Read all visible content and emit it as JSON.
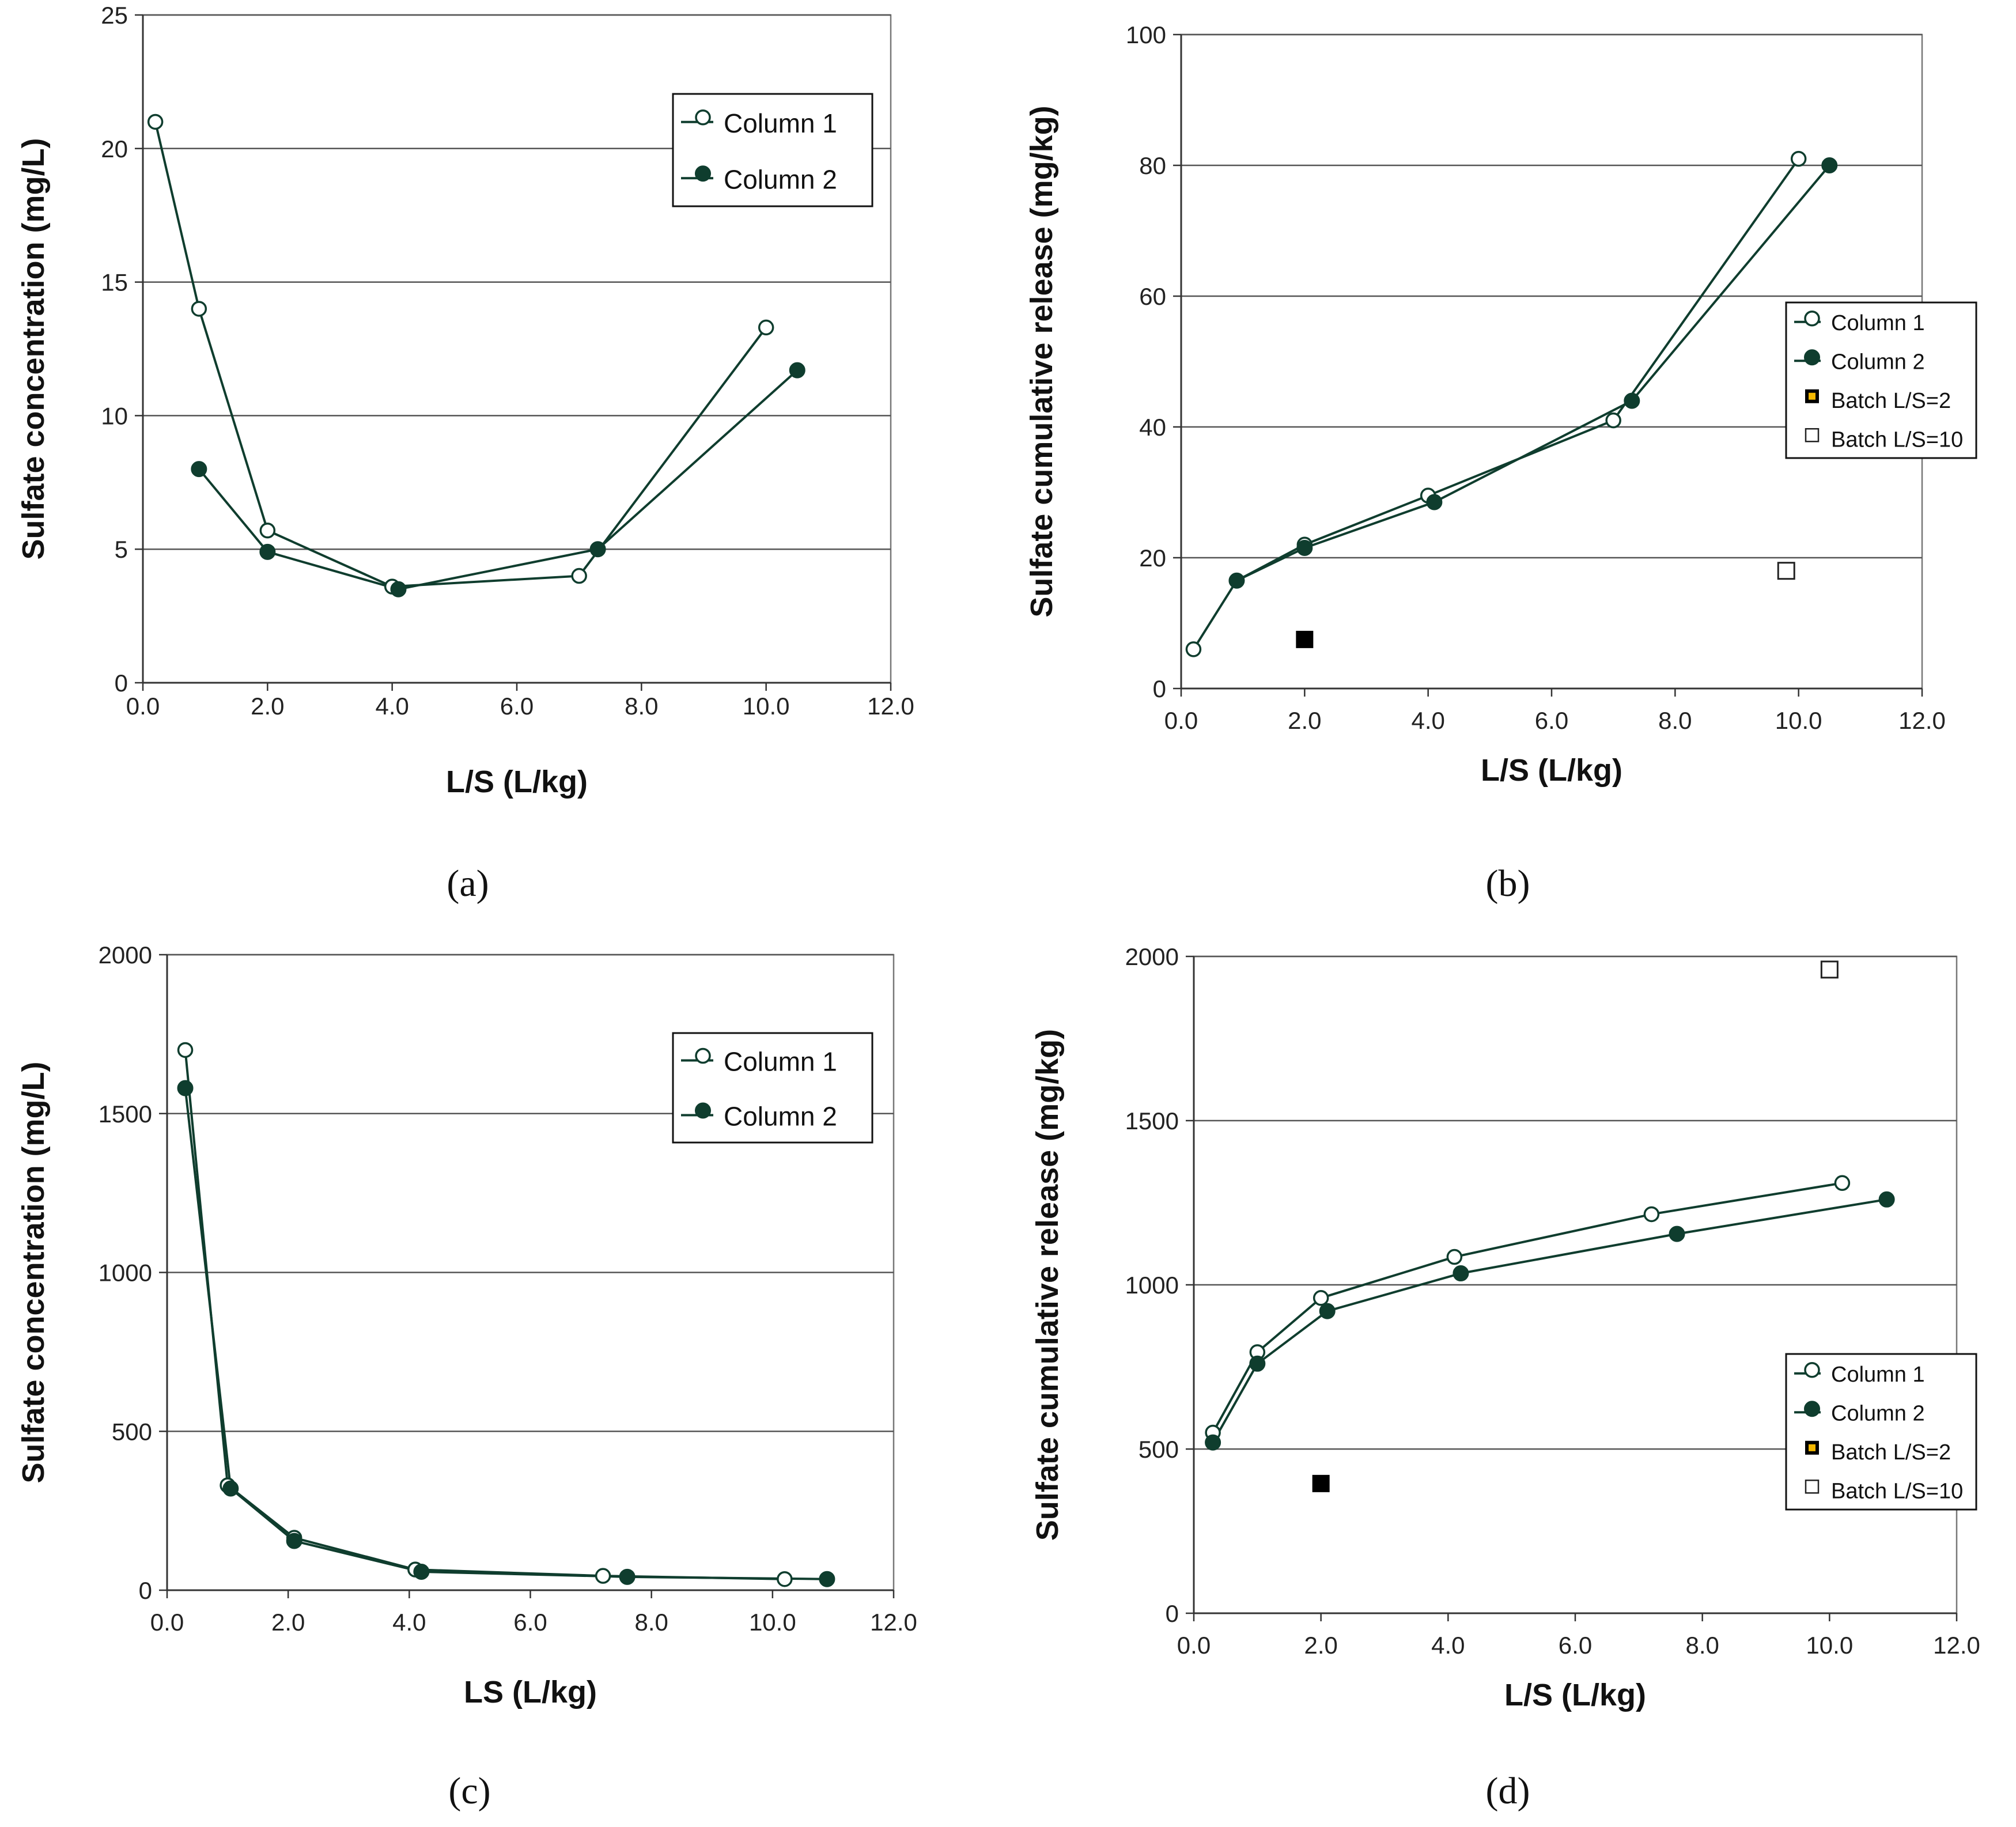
{
  "colors": {
    "series": "#0f3d2e",
    "grid": "#555555",
    "frame": "#777777",
    "batch2": "#000000",
    "batch2_inner": "#f5b800"
  },
  "chart_data": [
    {
      "id": "a",
      "panel_label": "(a)",
      "type": "line",
      "xlabel": "L/S (L/kg)",
      "ylabel": "Sulfate concentration (mg/L)",
      "xlim": [
        0,
        12
      ],
      "ylim": [
        0,
        25
      ],
      "xticks": [
        0,
        2,
        4,
        6,
        8,
        10,
        12
      ],
      "xtick_labels": [
        "0.0",
        "2.0",
        "4.0",
        "6.0",
        "8.0",
        "10.0",
        "12.0"
      ],
      "yticks": [
        0,
        5,
        10,
        15,
        20,
        25
      ],
      "ytick_labels": [
        "0",
        "5",
        "10",
        "15",
        "20",
        "25"
      ],
      "grid": "horizontal",
      "legend_position": "top-right",
      "series": [
        {
          "name": "Column 1",
          "marker": "open-circle",
          "x": [
            0.2,
            0.9,
            2.0,
            4.0,
            7.0,
            10.0
          ],
          "y": [
            21.0,
            14.0,
            5.7,
            3.6,
            4.0,
            13.3
          ]
        },
        {
          "name": "Column 2",
          "marker": "filled-circle",
          "x": [
            0.9,
            2.0,
            4.1,
            7.3,
            10.5
          ],
          "y": [
            8.0,
            4.9,
            3.5,
            5.0,
            11.7
          ]
        }
      ]
    },
    {
      "id": "b",
      "panel_label": "(b)",
      "type": "line",
      "xlabel": "L/S (L/kg)",
      "ylabel": "Sulfate cumulative release (mg/kg)",
      "xlim": [
        0,
        12
      ],
      "ylim": [
        0,
        100
      ],
      "xticks": [
        0,
        2,
        4,
        6,
        8,
        10,
        12
      ],
      "xtick_labels": [
        "0.0",
        "2.0",
        "4.0",
        "6.0",
        "8.0",
        "10.0",
        "12.0"
      ],
      "yticks": [
        0,
        20,
        40,
        60,
        80,
        100
      ],
      "ytick_labels": [
        "0",
        "20",
        "40",
        "60",
        "80",
        "100"
      ],
      "grid": "horizontal",
      "legend_position": "right",
      "series": [
        {
          "name": "Column 1",
          "marker": "open-circle",
          "x": [
            0.2,
            0.9,
            2.0,
            4.0,
            7.0,
            10.0
          ],
          "y": [
            6.0,
            16.5,
            22.0,
            29.5,
            41.0,
            81.0
          ]
        },
        {
          "name": "Column 2",
          "marker": "filled-circle",
          "x": [
            0.9,
            2.0,
            4.1,
            7.3,
            10.5
          ],
          "y": [
            16.5,
            21.5,
            28.5,
            44.0,
            80.0
          ]
        },
        {
          "name": "Batch L/S=2",
          "marker": "filled-square",
          "x": [
            2.0
          ],
          "y": [
            7.5
          ]
        },
        {
          "name": "Batch L/S=10",
          "marker": "open-square",
          "x": [
            9.8
          ],
          "y": [
            18.0
          ]
        }
      ]
    },
    {
      "id": "c",
      "panel_label": "(c)",
      "type": "line",
      "xlabel": "LS (L/kg)",
      "ylabel": "Sulfate concentration (mg/L)",
      "xlim": [
        0,
        12
      ],
      "ylim": [
        0,
        2000
      ],
      "xticks": [
        0,
        2,
        4,
        6,
        8,
        10,
        12
      ],
      "xtick_labels": [
        "0.0",
        "2.0",
        "4.0",
        "6.0",
        "8.0",
        "10.0",
        "12.0"
      ],
      "yticks": [
        0,
        500,
        1000,
        1500,
        2000
      ],
      "ytick_labels": [
        "0",
        "500",
        "1000",
        "1500",
        "2000"
      ],
      "grid": "horizontal",
      "legend_position": "top-right",
      "series": [
        {
          "name": "Column 1",
          "marker": "open-circle",
          "x": [
            0.3,
            1.0,
            2.1,
            4.1,
            7.2,
            10.2
          ],
          "y": [
            1700,
            330,
            165,
            65,
            45,
            35
          ]
        },
        {
          "name": "Column 2",
          "marker": "filled-circle",
          "x": [
            0.3,
            1.05,
            2.1,
            4.2,
            7.6,
            10.9
          ],
          "y": [
            1580,
            320,
            155,
            58,
            42,
            35
          ]
        }
      ]
    },
    {
      "id": "d",
      "panel_label": "(d)",
      "type": "line",
      "xlabel": "L/S (L/kg)",
      "ylabel": "Sulfate cumulative release (mg/kg)",
      "xlim": [
        0,
        12
      ],
      "ylim": [
        0,
        2000
      ],
      "xticks": [
        0,
        2,
        4,
        6,
        8,
        10,
        12
      ],
      "xtick_labels": [
        "0.0",
        "2.0",
        "4.0",
        "6.0",
        "8.0",
        "10.0",
        "12.0"
      ],
      "yticks": [
        0,
        500,
        1000,
        1500,
        2000
      ],
      "ytick_labels": [
        "0",
        "500",
        "1000",
        "1500",
        "2000"
      ],
      "grid": "horizontal",
      "legend_position": "right",
      "series": [
        {
          "name": "Column 1",
          "marker": "open-circle",
          "x": [
            0.3,
            1.0,
            2.0,
            4.1,
            7.2,
            10.2
          ],
          "y": [
            550,
            795,
            960,
            1085,
            1215,
            1310
          ]
        },
        {
          "name": "Column 2",
          "marker": "filled-circle",
          "x": [
            0.3,
            1.0,
            2.1,
            4.2,
            7.6,
            10.9
          ],
          "y": [
            520,
            760,
            920,
            1035,
            1155,
            1260
          ]
        },
        {
          "name": "Batch L/S=2",
          "marker": "filled-square",
          "x": [
            2.0
          ],
          "y": [
            395
          ]
        },
        {
          "name": "Batch L/S=10",
          "marker": "open-square",
          "x": [
            10.0
          ],
          "y": [
            1960
          ]
        }
      ]
    }
  ]
}
